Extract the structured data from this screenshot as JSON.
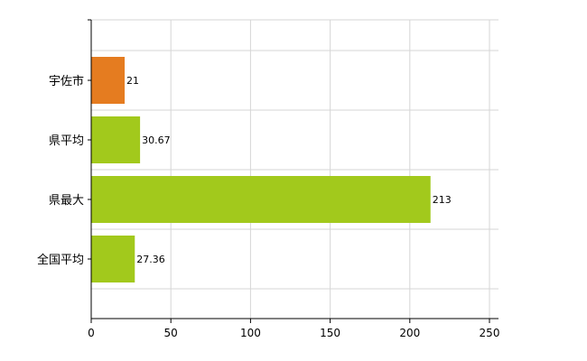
{
  "chart_data": {
    "type": "bar",
    "orientation": "horizontal",
    "categories": [
      "宇佐市",
      "県平均",
      "県最大",
      "全国平均"
    ],
    "values": [
      21,
      30.67,
      213,
      27.36
    ],
    "data_labels": [
      "21",
      "30.67",
      "213",
      "27.36"
    ],
    "bar_colors": [
      "#e57c20",
      "#a2c91c",
      "#a2c91c",
      "#a2c91c"
    ],
    "xlim": [
      0,
      250
    ],
    "xticks": [
      0,
      50,
      100,
      150,
      200,
      250
    ],
    "xtick_labels": [
      "0",
      "50",
      "100",
      "150",
      "200",
      "250"
    ],
    "grid": true,
    "legend": "none"
  }
}
